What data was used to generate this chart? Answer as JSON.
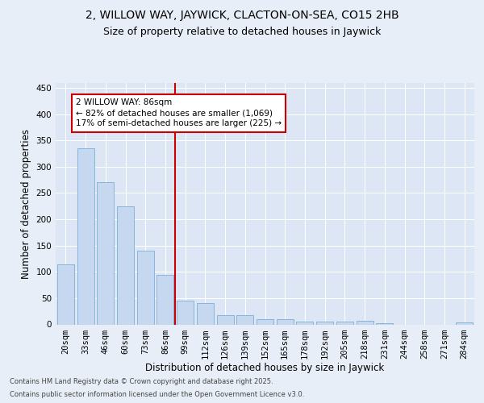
{
  "title1": "2, WILLOW WAY, JAYWICK, CLACTON-ON-SEA, CO15 2HB",
  "title2": "Size of property relative to detached houses in Jaywick",
  "xlabel": "Distribution of detached houses by size in Jaywick",
  "ylabel": "Number of detached properties",
  "categories": [
    "20sqm",
    "33sqm",
    "46sqm",
    "60sqm",
    "73sqm",
    "86sqm",
    "99sqm",
    "112sqm",
    "126sqm",
    "139sqm",
    "152sqm",
    "165sqm",
    "178sqm",
    "192sqm",
    "205sqm",
    "218sqm",
    "231sqm",
    "244sqm",
    "258sqm",
    "271sqm",
    "284sqm"
  ],
  "values": [
    115,
    335,
    270,
    225,
    140,
    95,
    46,
    40,
    17,
    17,
    10,
    10,
    6,
    6,
    6,
    7,
    2,
    0,
    0,
    0,
    4
  ],
  "bar_color": "#c5d8f0",
  "bar_edge_color": "#7bafd4",
  "highlight_index": 5,
  "vline_color": "#cc0000",
  "annotation_text": "2 WILLOW WAY: 86sqm\n← 82% of detached houses are smaller (1,069)\n17% of semi-detached houses are larger (225) →",
  "annotation_box_color": "#cc0000",
  "background_color": "#e8eef8",
  "plot_bg_color": "#dce6f4",
  "grid_color": "#ffffff",
  "ylim": [
    0,
    460
  ],
  "yticks": [
    0,
    50,
    100,
    150,
    200,
    250,
    300,
    350,
    400,
    450
  ],
  "footer1": "Contains HM Land Registry data © Crown copyright and database right 2025.",
  "footer2": "Contains public sector information licensed under the Open Government Licence v3.0.",
  "title1_fontsize": 10,
  "title2_fontsize": 9,
  "xlabel_fontsize": 8.5,
  "ylabel_fontsize": 8.5,
  "tick_fontsize": 7.5,
  "annotation_fontsize": 7.5,
  "footer_fontsize": 6
}
